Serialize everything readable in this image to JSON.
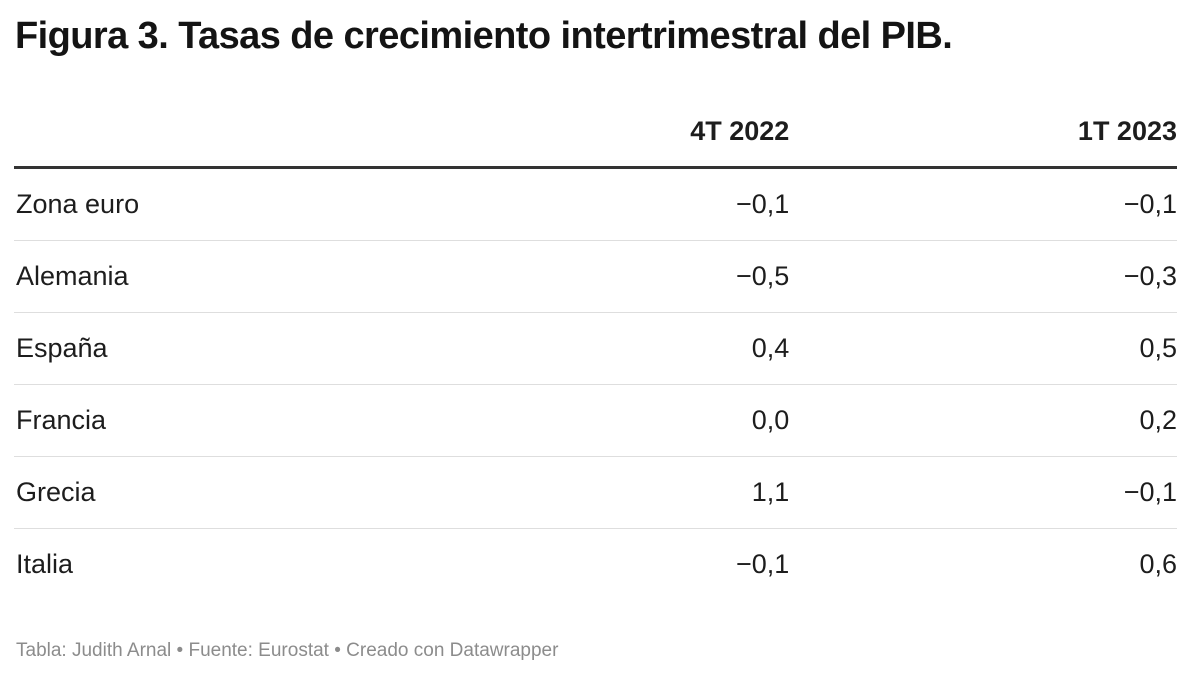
{
  "title": "Figura 3. Tasas de crecimiento intertrimestral del PIB.",
  "table": {
    "columns": [
      "",
      "4T 2022",
      "1T 2023"
    ],
    "rows": [
      {
        "label": "Zona euro",
        "values": [
          "−0,1",
          "−0,1"
        ]
      },
      {
        "label": "Alemania",
        "values": [
          "−0,5",
          "−0,3"
        ]
      },
      {
        "label": "España",
        "values": [
          "0,4",
          "0,5"
        ]
      },
      {
        "label": "Francia",
        "values": [
          "0,0",
          "0,2"
        ]
      },
      {
        "label": "Grecia",
        "values": [
          "1,1",
          "−0,1"
        ]
      },
      {
        "label": "Italia",
        "values": [
          "−0,1",
          "0,6"
        ]
      }
    ]
  },
  "footer": "Tabla: Judith Arnal • Fuente: Eurostat • Creado con Datawrapper",
  "colors": {
    "title_text": "#141414",
    "cell_text": "#1d1d1d",
    "header_rule": "#333333",
    "row_rule": "#dedede",
    "footer_text": "#8c8c8c",
    "background": "#ffffff"
  },
  "chart_data": {
    "type": "table",
    "title": "Figura 3. Tasas de crecimiento intertrimestral del PIB.",
    "categories": [
      "Zona euro",
      "Alemania",
      "España",
      "Francia",
      "Grecia",
      "Italia"
    ],
    "series": [
      {
        "name": "4T 2022",
        "values": [
          -0.1,
          -0.5,
          0.4,
          0.0,
          1.1,
          -0.1
        ]
      },
      {
        "name": "1T 2023",
        "values": [
          -0.1,
          -0.3,
          0.5,
          0.2,
          -0.1,
          0.6
        ]
      }
    ],
    "value_format": "decimal comma, one decimal place, U+2212 minus",
    "notes": "Tabla: Judith Arnal • Fuente: Eurostat • Creado con Datawrapper"
  }
}
